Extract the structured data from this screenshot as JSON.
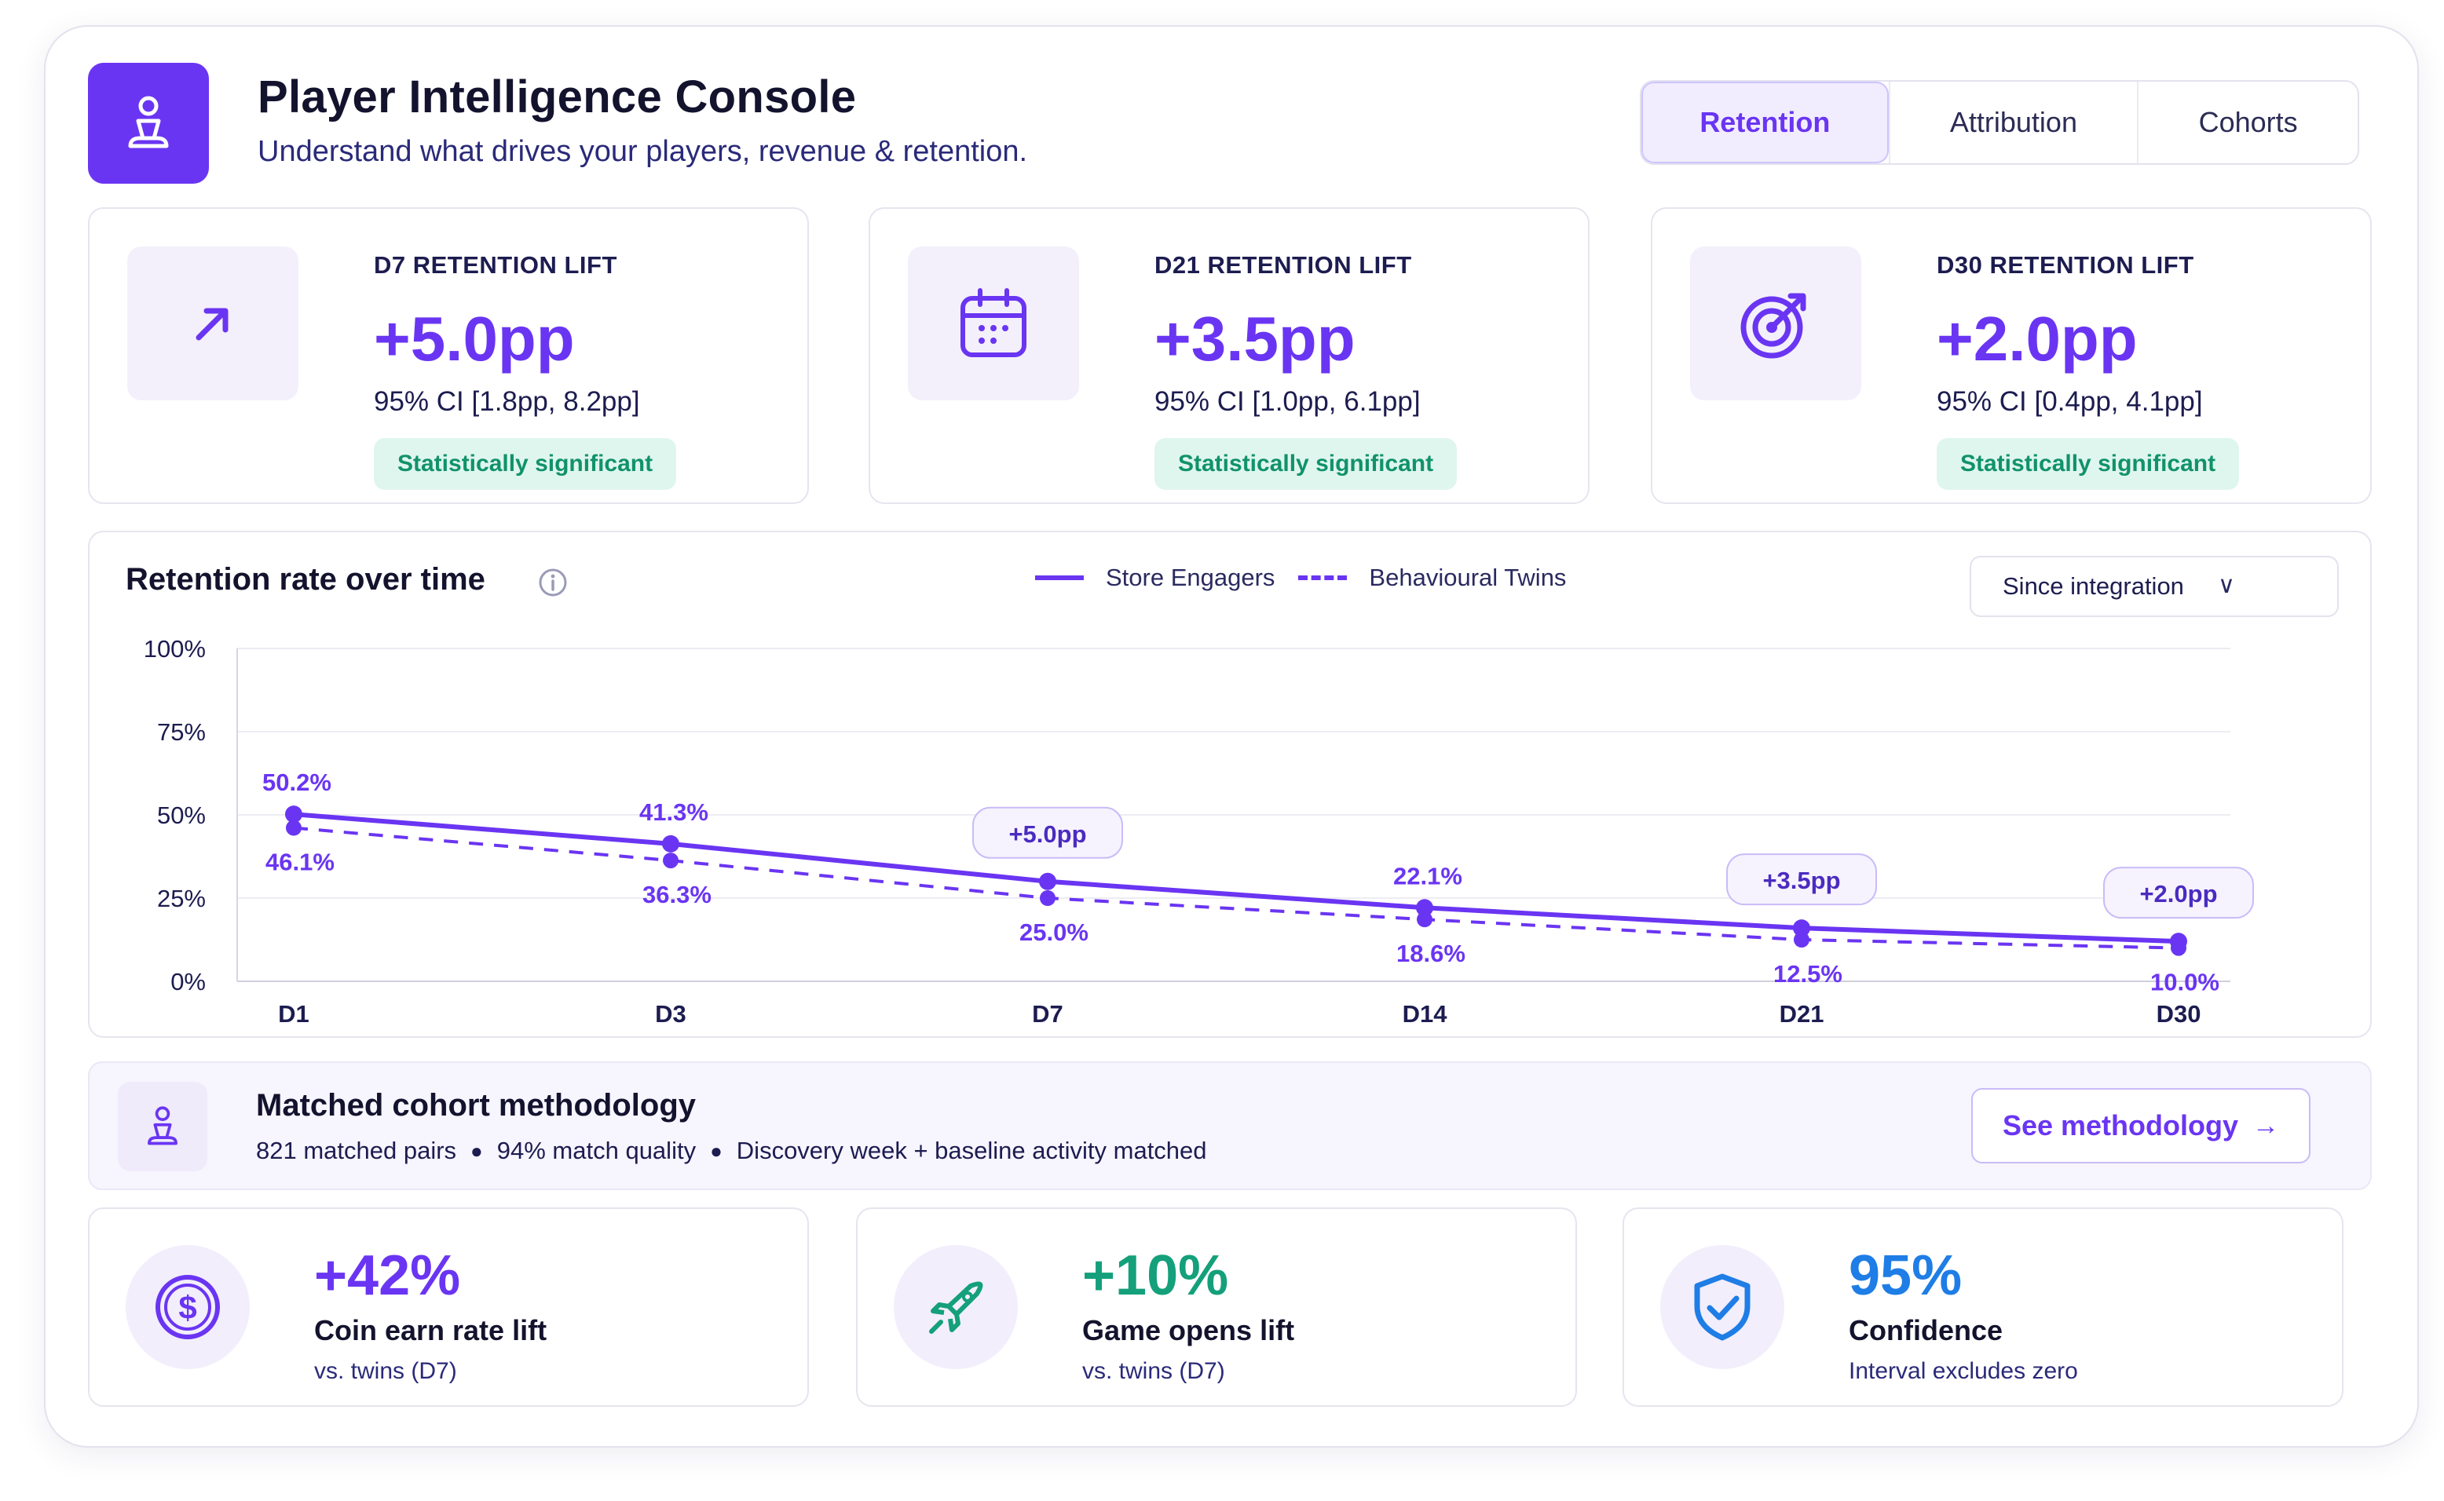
{
  "header": {
    "title": "Player Intelligence Console",
    "subtitle": "Understand what drives your players, revenue & retention.",
    "tabs": [
      {
        "label": "Retention",
        "active": true
      },
      {
        "label": "Attribution",
        "active": false
      },
      {
        "label": "Cohorts",
        "active": false
      }
    ]
  },
  "kpis": [
    {
      "icon": "arrow-up-right-icon",
      "label": "D7 RETENTION LIFT",
      "value": "+5.0pp",
      "ci": "95% CI [1.8pp, 8.2pp]",
      "badge": "Statistically significant"
    },
    {
      "icon": "calendar-icon",
      "label": "D21 RETENTION LIFT",
      "value": "+3.5pp",
      "ci": "95% CI [1.0pp, 6.1pp]",
      "badge": "Statistically significant"
    },
    {
      "icon": "target-icon",
      "label": "D30 RETENTION LIFT",
      "value": "+2.0pp",
      "ci": "95% CI [0.4pp, 4.1pp]",
      "badge": "Statistically significant"
    }
  ],
  "chart": {
    "title": "Retention rate over time",
    "range_select": "Since integration",
    "legend": [
      "Store Engagers",
      "Behavioural Twins"
    ]
  },
  "chart_data": {
    "type": "line",
    "categories": [
      "D1",
      "D3",
      "D7",
      "D14",
      "D21",
      "D30"
    ],
    "series": [
      {
        "name": "Store Engagers",
        "values": [
          50.2,
          41.3,
          30.0,
          22.1,
          16.0,
          12.0
        ],
        "style": "solid"
      },
      {
        "name": "Behavioural Twins",
        "values": [
          46.1,
          36.3,
          25.0,
          18.6,
          12.5,
          10.0
        ],
        "style": "dashed"
      }
    ],
    "labels_top": [
      "50.2%",
      "41.3%",
      "",
      "22.1%",
      "",
      ""
    ],
    "labels_bottom": [
      "46.1%",
      "36.3%",
      "25.0%",
      "18.6%",
      "12.5%",
      "10.0%"
    ],
    "lift_callouts": [
      {
        "category": "D7",
        "text": "+5.0pp"
      },
      {
        "category": "D21",
        "text": "+3.5pp"
      },
      {
        "category": "D30",
        "text": "+2.0pp"
      }
    ],
    "yticks": [
      "100%",
      "75%",
      "50%",
      "25%",
      "0%"
    ],
    "ylim": [
      0,
      100
    ],
    "grid": true,
    "color": "#6a35f2"
  },
  "methodology": {
    "title": "Matched cohort methodology",
    "meta": [
      "821 matched pairs",
      "94% match quality",
      "Discovery week + baseline activity matched"
    ],
    "button": "See methodology"
  },
  "stats": [
    {
      "icon": "dollar-coin-icon",
      "value": "+42%",
      "name": "Coin earn rate lift",
      "note": "vs. twins (D7)",
      "color": "#6a35f2"
    },
    {
      "icon": "rocket-icon",
      "value": "+10%",
      "name": "Game opens lift",
      "note": "vs. twins (D7)",
      "color": "#14a07a"
    },
    {
      "icon": "shield-check-icon",
      "value": "95%",
      "name": "Confidence",
      "note": "Interval excludes zero",
      "color": "#1f7de6"
    }
  ]
}
